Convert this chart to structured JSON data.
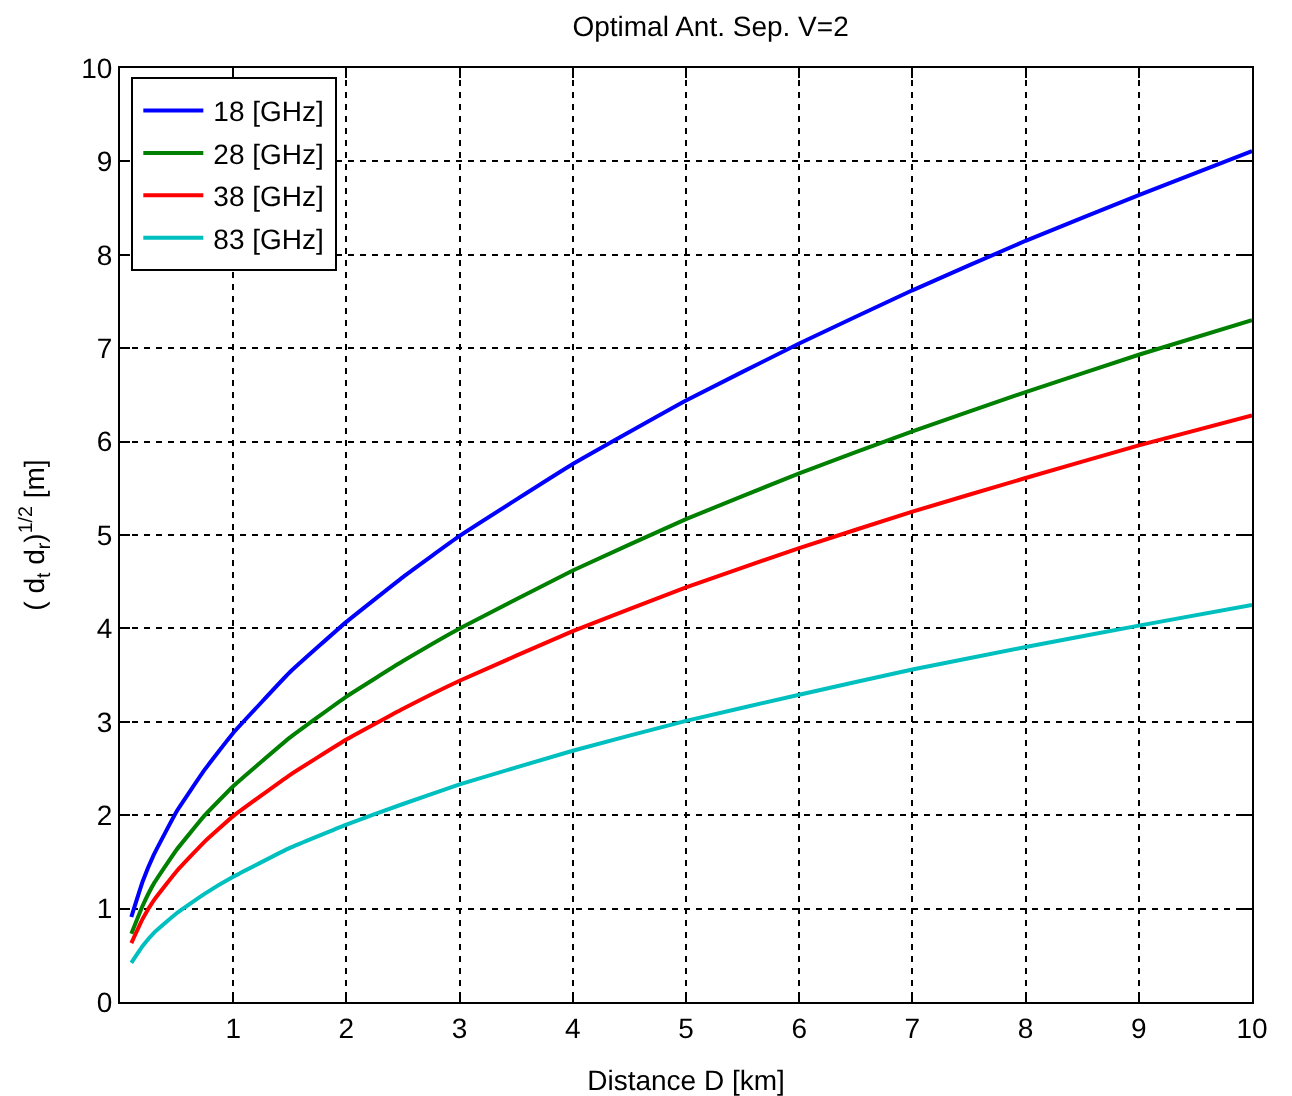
{
  "chart_data": {
    "type": "line",
    "title": "Optimal Ant. Sep. V=2",
    "xlabel": "Distance D [km]",
    "ylabel": "( d$_{t}$ d$_{r}$)$^{1/2}$ [m]",
    "x": [
      0.1,
      0.2,
      0.3,
      0.5,
      0.75,
      1,
      1.5,
      2,
      2.5,
      3,
      4,
      5,
      6,
      7,
      8,
      9,
      10
    ],
    "series": [
      {
        "name": "18 [GHz]",
        "color": "#0000ff",
        "values": [
          0.91,
          1.29,
          1.58,
          2.04,
          2.49,
          2.88,
          3.53,
          4.07,
          4.55,
          4.99,
          5.76,
          6.44,
          7.05,
          7.62,
          8.15,
          8.64,
          9.11
        ]
      },
      {
        "name": "28 [GHz]",
        "color": "#008000",
        "values": [
          0.73,
          1.03,
          1.27,
          1.63,
          2.0,
          2.31,
          2.83,
          3.27,
          3.65,
          4.0,
          4.62,
          5.17,
          5.66,
          6.11,
          6.53,
          6.93,
          7.3
        ]
      },
      {
        "name": "38 [GHz]",
        "color": "#ff0000",
        "values": [
          0.63,
          0.89,
          1.09,
          1.4,
          1.72,
          1.99,
          2.43,
          2.81,
          3.14,
          3.44,
          3.97,
          4.44,
          4.86,
          5.25,
          5.61,
          5.96,
          6.28
        ]
      },
      {
        "name": "83 [GHz]",
        "color": "#00bfbf",
        "values": [
          0.42,
          0.6,
          0.74,
          0.95,
          1.16,
          1.34,
          1.65,
          1.9,
          2.12,
          2.33,
          2.69,
          3.01,
          3.29,
          3.56,
          3.8,
          4.03,
          4.25
        ]
      }
    ],
    "xlim": [
      0,
      10
    ],
    "xticks": [
      {
        "value": 0,
        "label": null
      },
      1,
      2,
      3,
      4,
      5,
      6,
      7,
      8,
      9,
      10
    ],
    "ylim": [
      0,
      10
    ],
    "yticks": [
      0,
      1,
      2,
      3,
      4,
      5,
      6,
      7,
      8,
      9,
      10
    ],
    "grid": true,
    "legend": "top left",
    "line_style": "solid"
  }
}
